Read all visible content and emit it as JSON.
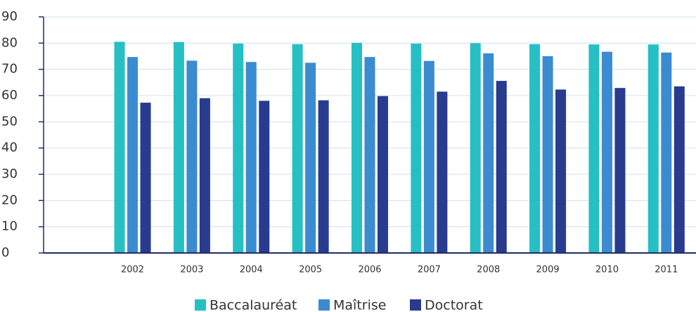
{
  "chart_data": {
    "type": "bar",
    "categories": [
      null,
      "2002",
      "2003",
      "2004",
      "2005",
      "2006",
      "2007",
      "2008",
      "2009",
      "2010",
      "2011"
    ],
    "series": [
      {
        "name": "Baccalauréat",
        "color": "#26bfc3",
        "values": [
          null,
          80.5,
          80.4,
          79.8,
          79.6,
          80.1,
          79.8,
          80.0,
          79.6,
          79.5,
          79.5
        ]
      },
      {
        "name": "Maîtrise",
        "color": "#3b8bd0",
        "values": [
          null,
          74.7,
          73.3,
          72.8,
          72.5,
          74.7,
          73.2,
          76.1,
          75.0,
          76.7,
          76.4
        ]
      },
      {
        "name": "Doctorat",
        "color": "#283b8f",
        "values": [
          null,
          57.3,
          59.0,
          58.0,
          58.2,
          59.8,
          61.5,
          65.6,
          62.3,
          62.9,
          63.5
        ]
      }
    ],
    "ylim": [
      0,
      90
    ],
    "yticks": [
      0,
      10,
      20,
      30,
      40,
      50,
      60,
      70,
      80,
      90
    ],
    "grid": true,
    "legend": "bottom"
  }
}
